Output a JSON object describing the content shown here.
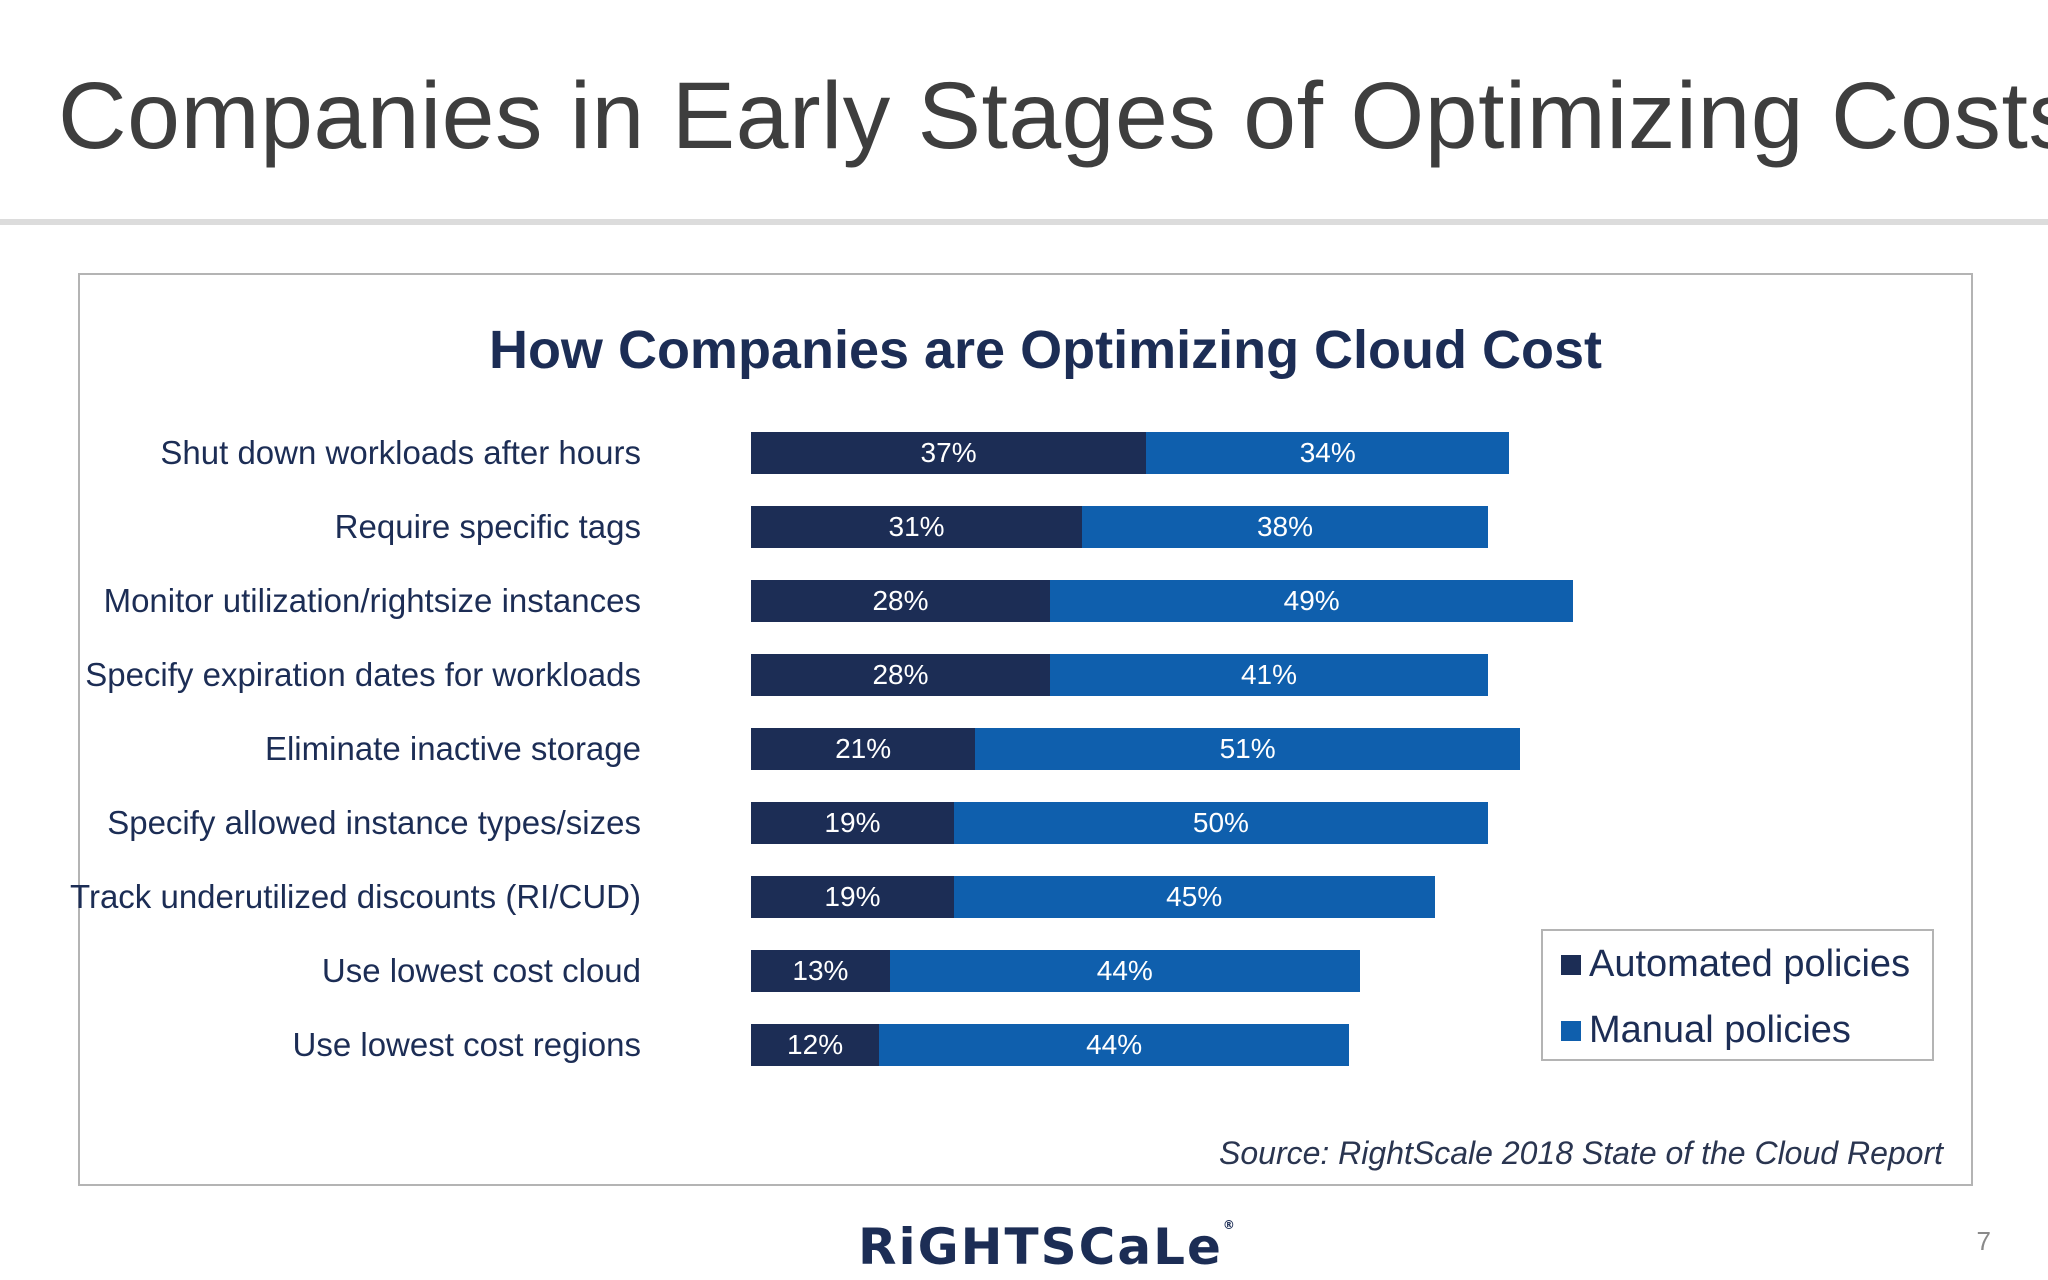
{
  "slide": {
    "title": "Companies in Early Stages of Optimizing Costs",
    "logo_text": "RiGHTSCaLe",
    "logo_mark": "®",
    "page_number": "7"
  },
  "chart_data": {
    "type": "bar",
    "orientation": "horizontal",
    "stacked": true,
    "title": "How Companies are Optimizing Cloud Cost",
    "categories": [
      "Shut down workloads after hours",
      "Require specific tags",
      "Monitor utilization/rightsize instances",
      "Specify expiration dates for workloads",
      "Eliminate inactive storage",
      "Specify allowed instance types/sizes",
      "Track underutilized discounts (RI/CUD)",
      "Use lowest cost cloud",
      "Use lowest cost regions"
    ],
    "series": [
      {
        "name": "Automated policies",
        "color": "#1c2d55",
        "values": [
          37,
          31,
          28,
          28,
          21,
          19,
          19,
          13,
          12
        ],
        "labels": [
          "37%",
          "31%",
          "28%",
          "28%",
          "21%",
          "19%",
          "19%",
          "13%",
          "12%"
        ]
      },
      {
        "name": "Manual policies",
        "color": "#0f5fad",
        "values": [
          34,
          38,
          49,
          41,
          51,
          50,
          45,
          44,
          44
        ],
        "labels": [
          "34%",
          "38%",
          "49%",
          "41%",
          "51%",
          "50%",
          "45%",
          "44%",
          "44%"
        ]
      }
    ],
    "legend": "right",
    "grid": false,
    "source": "Source: RightScale 2018 State of the Cloud Report"
  }
}
